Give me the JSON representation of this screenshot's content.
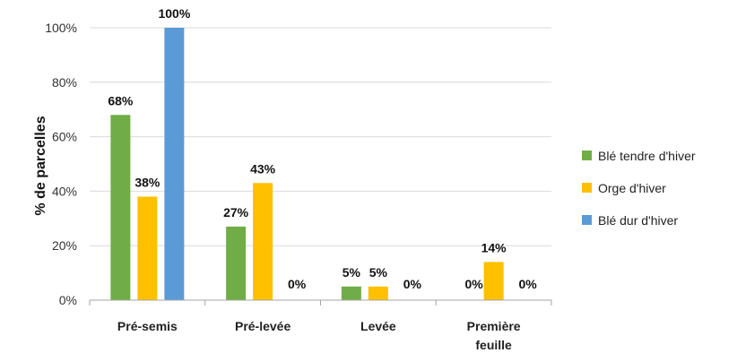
{
  "chart_data": {
    "type": "bar",
    "ylabel": "% de parcelles",
    "ylim": [
      0,
      100
    ],
    "yticks": [
      "0%",
      "20%",
      "40%",
      "60%",
      "80%",
      "100%"
    ],
    "ytick_values": [
      0,
      20,
      40,
      60,
      80,
      100
    ],
    "grid": true,
    "legend_position": "right",
    "categories": [
      [
        "Pré-semis"
      ],
      [
        "Pré-levée"
      ],
      [
        "Levée"
      ],
      [
        "Première",
        "feuille"
      ]
    ],
    "series": [
      {
        "name": "Blé tendre d'hiver",
        "color": "#70AD47",
        "values": [
          68,
          27,
          5,
          0
        ],
        "labels": [
          "68%",
          "27%",
          "5%",
          "0%"
        ]
      },
      {
        "name": "Orge d'hiver",
        "color": "#FFC000",
        "values": [
          38,
          43,
          5,
          14
        ],
        "labels": [
          "38%",
          "43%",
          "5%",
          "14%"
        ]
      },
      {
        "name": "Blé dur d'hiver",
        "color": "#5B9BD5",
        "values": [
          100,
          0,
          0,
          0
        ],
        "labels": [
          "100%",
          "0%",
          "0%",
          "0%"
        ]
      }
    ]
  }
}
